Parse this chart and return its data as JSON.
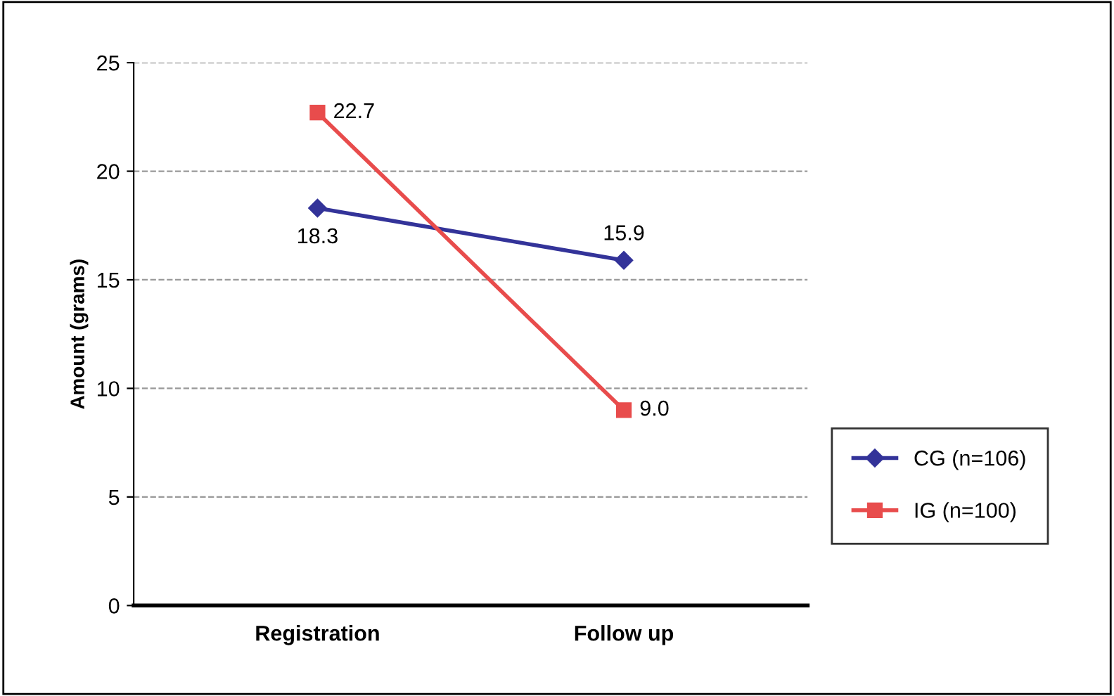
{
  "chart_data": {
    "type": "line",
    "ylabel": "Amount (grams)",
    "categories": [
      "Registration",
      "Follow up"
    ],
    "series": [
      {
        "name": "CG (n=106)",
        "color": "#333399",
        "values": [
          18.3,
          15.9
        ],
        "marker": "diamond",
        "value_labels": [
          "18.3",
          "15.9"
        ]
      },
      {
        "name": "IG (n=100)",
        "color": "#e84c4c",
        "values": [
          22.7,
          9.0
        ],
        "marker": "square",
        "value_labels": [
          "22.7",
          "9.0"
        ]
      }
    ],
    "ylim": [
      0,
      25
    ],
    "yticks": [
      0,
      5,
      10,
      15,
      20,
      25
    ],
    "grid": "y",
    "legend": "right",
    "line_style": "solid"
  }
}
